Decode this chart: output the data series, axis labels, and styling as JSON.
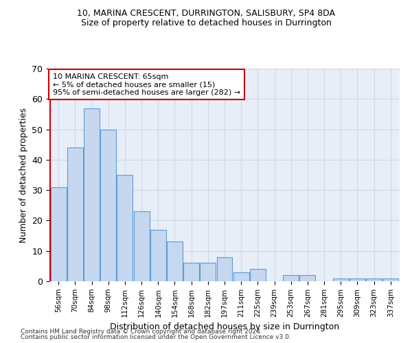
{
  "title1": "10, MARINA CRESCENT, DURRINGTON, SALISBURY, SP4 8DA",
  "title2": "Size of property relative to detached houses in Durrington",
  "xlabel": "Distribution of detached houses by size in Durrington",
  "ylabel": "Number of detached properties",
  "categories": [
    "56sqm",
    "70sqm",
    "84sqm",
    "98sqm",
    "112sqm",
    "126sqm",
    "140sqm",
    "154sqm",
    "168sqm",
    "182sqm",
    "197sqm",
    "211sqm",
    "225sqm",
    "239sqm",
    "253sqm",
    "267sqm",
    "281sqm",
    "295sqm",
    "309sqm",
    "323sqm",
    "337sqm"
  ],
  "values": [
    31,
    44,
    57,
    50,
    35,
    23,
    17,
    13,
    6,
    6,
    8,
    3,
    4,
    0,
    2,
    2,
    0,
    1,
    1,
    1,
    1
  ],
  "bar_color": "#c5d8f0",
  "bar_edge_color": "#5b9bd5",
  "grid_color": "#d0d8e4",
  "bg_color": "#e8eef8",
  "vline_color": "#cc0000",
  "annotation_text": "10 MARINA CRESCENT: 65sqm\n← 5% of detached houses are smaller (15)\n95% of semi-detached houses are larger (282) →",
  "annotation_box_color": "#cc0000",
  "footer1": "Contains HM Land Registry data © Crown copyright and database right 2024.",
  "footer2": "Contains public sector information licensed under the Open Government Licence v3.0.",
  "ylim_max": 70,
  "yticks": [
    0,
    10,
    20,
    30,
    40,
    50,
    60,
    70
  ]
}
